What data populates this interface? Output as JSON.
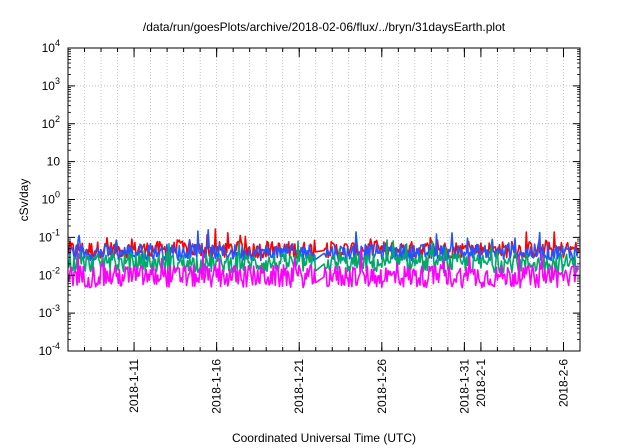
{
  "chart_data": {
    "type": "line",
    "title": "/data/run/goesPlots/archive/2018-02-06/flux/../bryn/31daysEarth.plot",
    "xlabel": "Coordinated Universal Time (UTC)",
    "ylabel": "cSv/day",
    "x_scale": "time",
    "y_scale": "log",
    "xlim": [
      "2018-01-07",
      "2018-02-07"
    ],
    "ylim": [
      0.0001,
      10000
    ],
    "grid": true,
    "legend": "none",
    "y_ticks": [
      {
        "value": 0.0001,
        "base": "10",
        "exp": "-4"
      },
      {
        "value": 0.001,
        "base": "10",
        "exp": "-3"
      },
      {
        "value": 0.01,
        "base": "10",
        "exp": "-2"
      },
      {
        "value": 0.1,
        "base": "10",
        "exp": "-1"
      },
      {
        "value": 1,
        "base": "10",
        "exp": "0"
      },
      {
        "value": 10,
        "base": "10",
        "exp": ""
      },
      {
        "value": 100,
        "base": "10",
        "exp": "2"
      },
      {
        "value": 1000,
        "base": "10",
        "exp": "3"
      },
      {
        "value": 10000,
        "base": "10",
        "exp": "4"
      }
    ],
    "x_ticks": [
      {
        "date": "2018-01-11",
        "label": "2018-1-11"
      },
      {
        "date": "2018-01-16",
        "label": "2018-1-16"
      },
      {
        "date": "2018-01-21",
        "label": "2018-1-21"
      },
      {
        "date": "2018-01-26",
        "label": "2018-1-26"
      },
      {
        "date": "2018-01-31",
        "label": "2018-1-31"
      },
      {
        "date": "2018-02-01",
        "label": "2018-2-1"
      },
      {
        "date": "2018-02-06",
        "label": "2018-2-6"
      }
    ],
    "gap": {
      "start": "2018-01-22",
      "end": "2018-01-22T12:00"
    },
    "x_minor_step_days": 1,
    "series": [
      {
        "color": "#ff0000",
        "baseline": 0.05,
        "spread": 0.22
      },
      {
        "color": "#2255ff",
        "baseline": 0.042,
        "spread": 0.22
      },
      {
        "color": "#00aa66",
        "baseline": 0.022,
        "spread": 0.25
      },
      {
        "color": "#ff00ff",
        "baseline": 0.01,
        "spread": 0.3
      }
    ]
  }
}
